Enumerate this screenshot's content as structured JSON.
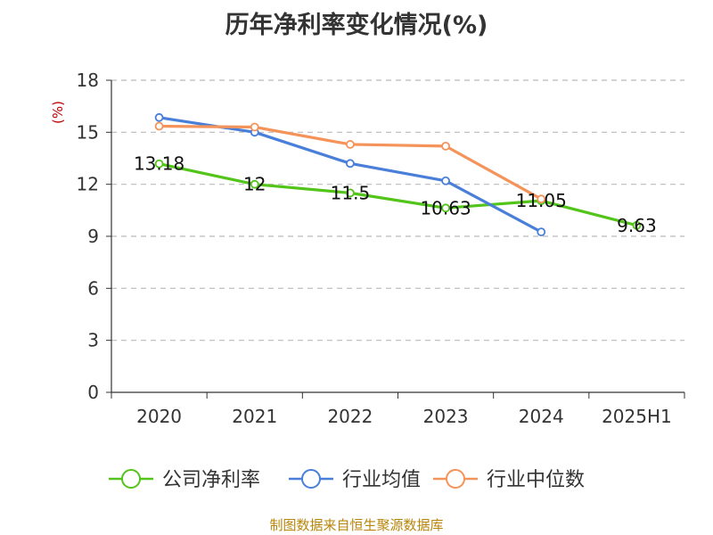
{
  "title": "历年净利率变化情况(%)",
  "source": "制图数据来自恒生聚源数据库",
  "chart_data": {
    "type": "line",
    "title": "历年净利率变化情况(%)",
    "ylabel": "(%)",
    "xlabel": "",
    "categories": [
      "2020",
      "2021",
      "2022",
      "2023",
      "2024",
      "2025H1"
    ],
    "ylim": [
      0,
      18
    ],
    "yticks": [
      0,
      3,
      6,
      9,
      12,
      15,
      18
    ],
    "grid": true,
    "legend_position": "bottom",
    "series": [
      {
        "name": "公司净利率",
        "color": "#52c41a",
        "values": [
          13.18,
          12,
          11.5,
          10.63,
          11.05,
          9.63
        ],
        "labels": [
          "13.18",
          "12",
          "11.5",
          "10.63",
          "11.05",
          "9.63"
        ]
      },
      {
        "name": "行业均值",
        "color": "#4a7fd9",
        "values": [
          15.85,
          15.0,
          13.2,
          12.2,
          9.25,
          null
        ]
      },
      {
        "name": "行业中位数",
        "color": "#f4935a",
        "values": [
          15.35,
          15.3,
          14.3,
          14.2,
          11.15,
          null
        ]
      }
    ]
  }
}
